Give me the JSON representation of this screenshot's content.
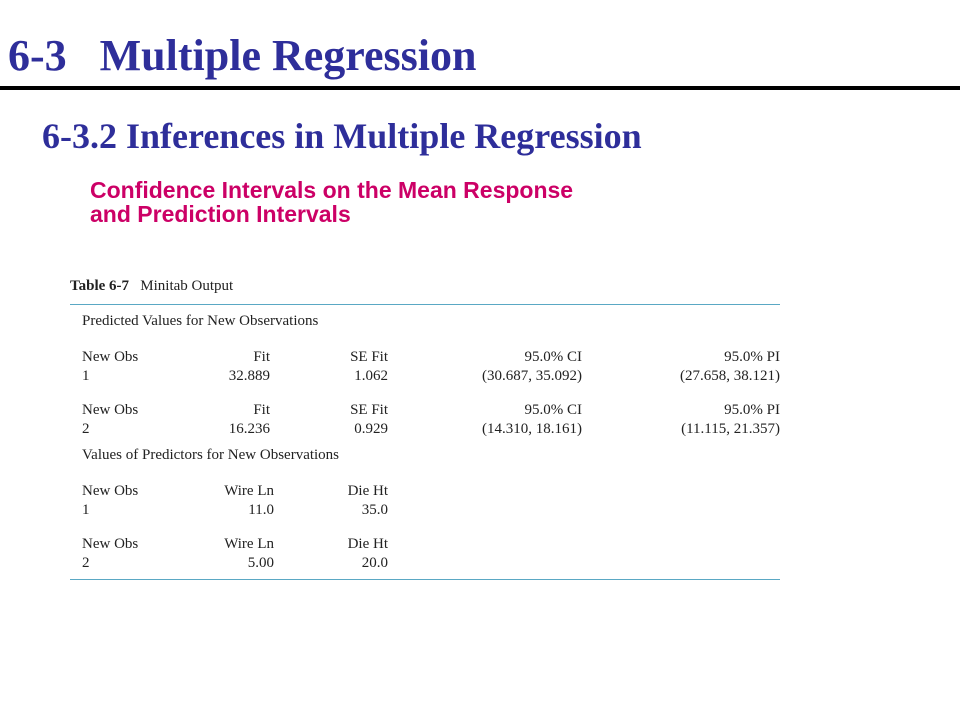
{
  "title": "6-3   Multiple Regression",
  "subtitle": "6-3.2 Inferences in Multiple Regression",
  "topic": {
    "line1": "Confidence Intervals on the Mean Response",
    "line2": "and Prediction Intervals"
  },
  "table": {
    "label": "Table 6-7",
    "caption": "Minitab Output",
    "predicted_section": {
      "heading": "Predicted Values for New Observations",
      "rows": [
        {
          "obs_header": "New Obs",
          "fit_header": "Fit",
          "se_header": "SE Fit",
          "ci_header": "95.0% CI",
          "pi_header": "95.0% PI",
          "obs": "1",
          "fit": "32.889",
          "se": "1.062",
          "ci": "(30.687, 35.092)",
          "pi": "(27.658, 38.121)"
        },
        {
          "obs_header": "New Obs",
          "fit_header": "Fit",
          "se_header": "SE Fit",
          "ci_header": "95.0% CI",
          "pi_header": "95.0% PI",
          "obs": "2",
          "fit": "16.236",
          "se": "0.929",
          "ci": "(14.310, 18.161)",
          "pi": "(11.115, 21.357)"
        }
      ]
    },
    "predictors_section": {
      "heading": "Values of Predictors for New Observations",
      "rows": [
        {
          "obs_header": "New Obs",
          "wire_header": "Wire Ln",
          "die_header": "Die Ht",
          "obs": "1",
          "wire": "11.0",
          "die": "35.0"
        },
        {
          "obs_header": "New Obs",
          "wire_header": "Wire Ln",
          "die_header": "Die Ht",
          "obs": "2",
          "wire": "5.00",
          "die": "20.0"
        }
      ]
    }
  },
  "colors": {
    "title": "#2e2e9a",
    "topic": "#cc0066",
    "table_rule": "#5aa8c4"
  }
}
